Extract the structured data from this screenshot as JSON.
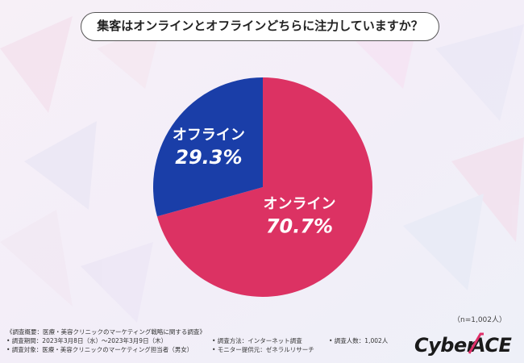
{
  "question": "集客はオンラインとオフラインどちらに注力していますか？",
  "sample_size": "（n=1,002人）",
  "footer": {
    "title": "《調査概要：医療・美容クリニックのマーケティング戦略に関する調査》",
    "period": "• 調査期間：2023年3月8日（水）～2023年3月9日（木）",
    "subject": "• 調査対象：医療・美容クリニックのマーケティング担当者（男女）",
    "method": "• 調査方法：インターネット調査",
    "provider": "• モニター提供元：ゼネラルリサーチ",
    "count": "• 調査人数：1,002人"
  },
  "logo": {
    "text": "CyberACE"
  },
  "colors": {
    "online": "#dc3263",
    "offline": "#1a3ea8",
    "label_text": "#ffffff",
    "logo_dark": "#1a1a1a",
    "logo_accent": "#e0306a"
  },
  "chart_data": {
    "type": "pie",
    "title": "集客はオンラインとオフラインどちらに注力していますか？",
    "slices": [
      {
        "label": "オンライン",
        "value": 70.7,
        "display": "70.7%",
        "color": "#dc3263"
      },
      {
        "label": "オフライン",
        "value": 29.3,
        "display": "29.3%",
        "color": "#1a3ea8"
      }
    ],
    "start": "12 o'clock",
    "direction": "clockwise"
  }
}
